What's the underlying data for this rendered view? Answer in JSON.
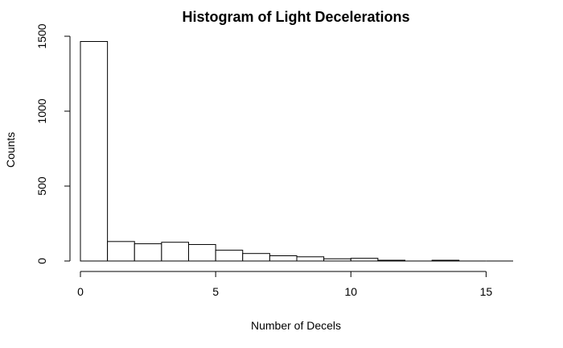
{
  "chart_data": {
    "type": "bar",
    "title": "Histogram of Light Decelerations",
    "xlabel": "Number of Decels",
    "ylabel": "Counts",
    "bin_edges": [
      0,
      1,
      2,
      3,
      4,
      5,
      6,
      7,
      8,
      9,
      10,
      11,
      12,
      13,
      14,
      15,
      16
    ],
    "values": [
      1465,
      130,
      115,
      125,
      110,
      72,
      50,
      35,
      28,
      15,
      18,
      5,
      0,
      5,
      0,
      0
    ],
    "xlim": [
      0,
      16
    ],
    "ylim": [
      0,
      1500
    ],
    "xticks": [
      0,
      5,
      10,
      15
    ],
    "yticks": [
      0,
      500,
      1000,
      1500
    ],
    "bar_fill": "#ffffff",
    "bar_stroke": "#000000",
    "grid": false,
    "legend": "none"
  }
}
